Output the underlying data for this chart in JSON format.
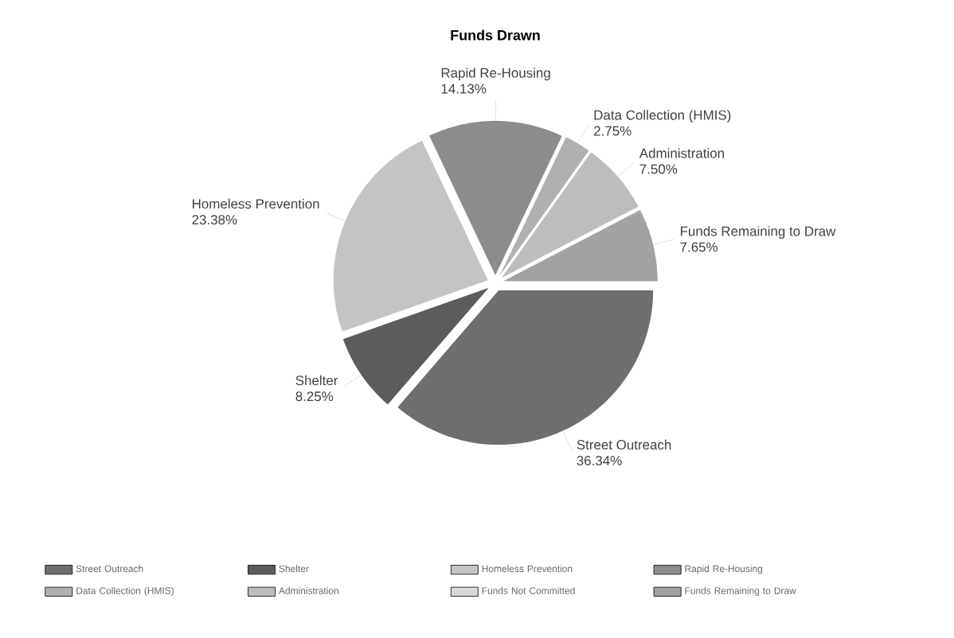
{
  "chart_data": {
    "type": "pie",
    "title": "Funds Drawn",
    "categories": [
      "Street Outreach",
      "Shelter",
      "Homeless Prevention",
      "Rapid Re-Housing",
      "Data Collection (HMIS)",
      "Administration",
      "Funds Not Committed",
      "Funds Remaining to Draw"
    ],
    "values": [
      36.34,
      8.25,
      23.38,
      14.13,
      2.75,
      7.5,
      0,
      7.65
    ],
    "value_labels": [
      "36.34%",
      "8.25%",
      "23.38%",
      "14.13%",
      "2.75%",
      "7.50%",
      null,
      "7.65%"
    ],
    "colors": [
      "#6e6e6e",
      "#5c5c5c",
      "#c4c4c4",
      "#8c8c8c",
      "#b0b0b0",
      "#bdbdbd",
      "#d8d8d8",
      "#a2a2a2"
    ],
    "legend": "bottom"
  }
}
